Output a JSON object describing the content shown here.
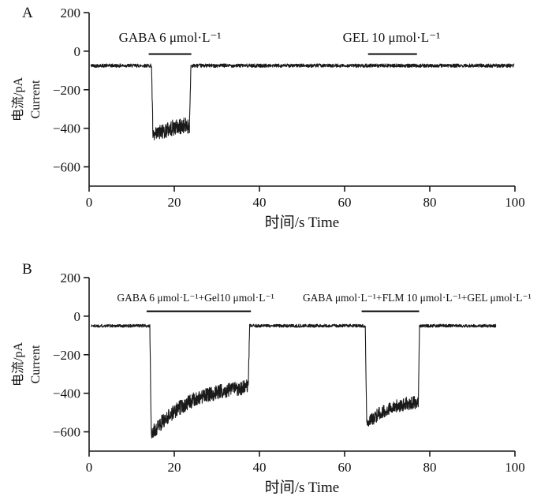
{
  "figure": {
    "background": "#ffffff",
    "trace_color": "#1a1a1a",
    "axis_color": "#1a1a1a"
  },
  "chart_data": [
    {
      "type": "line",
      "panel_label": "A",
      "xlabel": "时间/s Time",
      "ylabel": "电流/pA Current",
      "ylabel_lines": [
        "电流/pA",
        "Current"
      ],
      "xlim": [
        0,
        100
      ],
      "ylim": [
        -700,
        200
      ],
      "xticks": [
        0,
        20,
        40,
        60,
        80,
        100
      ],
      "yticks": [
        200,
        0,
        -200,
        -400,
        -600
      ],
      "baseline_pA": -75,
      "baseline_noise_pA": 9,
      "trace_start_s": 0.4,
      "trace_end_s": 99.8,
      "applications": [
        {
          "label": "GABA 6 μmol·L⁻¹",
          "bar_start_s": 14,
          "bar_end_s": 24,
          "label_center_s": 19
        },
        {
          "label": "GEL 10 μmol·L⁻¹",
          "bar_start_s": 65.5,
          "bar_end_s": 77,
          "label_center_s": 71
        }
      ],
      "events": [
        {
          "agonist": "GABA",
          "start_s": 15.0,
          "end_s": 23.6,
          "peak_pA": -450,
          "recovery_pA": -380,
          "noise_pA": 42
        }
      ]
    },
    {
      "type": "line",
      "panel_label": "B",
      "xlabel": "时间/s Time",
      "ylabel": "电流/pA Current",
      "ylabel_lines": [
        "电流/pA",
        "Current"
      ],
      "xlim": [
        0,
        100
      ],
      "ylim": [
        -700,
        200
      ],
      "xticks": [
        0,
        20,
        40,
        60,
        80,
        100
      ],
      "yticks": [
        200,
        0,
        -200,
        -400,
        -600
      ],
      "baseline_pA": -50,
      "baseline_noise_pA": 8,
      "trace_start_s": 0.5,
      "trace_end_s": 95.5,
      "applications": [
        {
          "label": "GABA 6 μmol·L⁻¹+Gel10 μmol·L⁻¹",
          "bar_start_s": 13.5,
          "bar_end_s": 38,
          "label_center_s": 25
        },
        {
          "label": "GABA μmol·L⁻¹+FLM 10 μmol·L⁻¹+GEL μmol·L⁻¹",
          "bar_start_s": 64,
          "bar_end_s": 77.5,
          "label_center_s": 77
        }
      ],
      "events": [
        {
          "agonist": "GABA+Gel",
          "start_s": 14.6,
          "end_s": 37.4,
          "peak_pA": -615,
          "recovery_pA": -345,
          "noise_pA": 38
        },
        {
          "agonist": "GABA+FLM+GEL",
          "start_s": 65.2,
          "end_s": 77.3,
          "peak_pA": -565,
          "recovery_pA": -435,
          "noise_pA": 34
        }
      ]
    }
  ]
}
